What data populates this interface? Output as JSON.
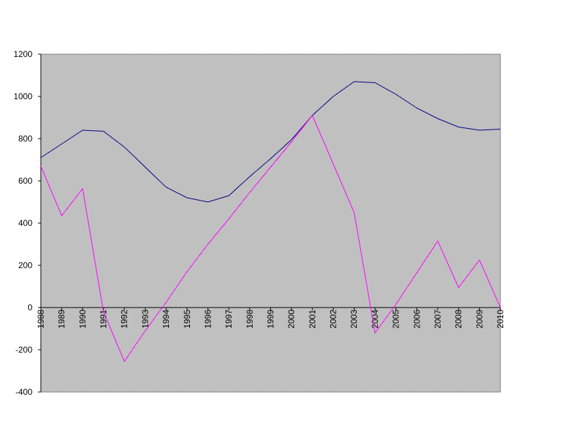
{
  "chart_data": {
    "type": "line",
    "categories": [
      "1988",
      "1989",
      "1990",
      "1991",
      "1992",
      "1993",
      "1994",
      "1995",
      "1996",
      "1997",
      "1998",
      "1999",
      "2000",
      "2001",
      "2002",
      "2003",
      "2004",
      "2005",
      "2006",
      "2007",
      "2008",
      "2009",
      "2010"
    ],
    "series": [
      {
        "color": "#000080",
        "values": [
          710,
          775,
          840,
          835,
          760,
          665,
          570,
          520,
          500,
          530,
          620,
          705,
          795,
          910,
          1000,
          1070,
          1065,
          1010,
          945,
          895,
          855,
          840,
          845
        ]
      },
      {
        "color": "#ff00ff",
        "values": [
          670,
          435,
          563,
          -20,
          -255,
          -110,
          25,
          170,
          300,
          420,
          545,
          665,
          785,
          910,
          680,
          450,
          -120,
          15,
          165,
          315,
          95,
          225,
          0
        ]
      }
    ],
    "ylim": [
      -400,
      1200
    ],
    "yticks": [
      -400,
      -200,
      0,
      200,
      400,
      600,
      800,
      1000,
      1200
    ],
    "grid": false
  }
}
